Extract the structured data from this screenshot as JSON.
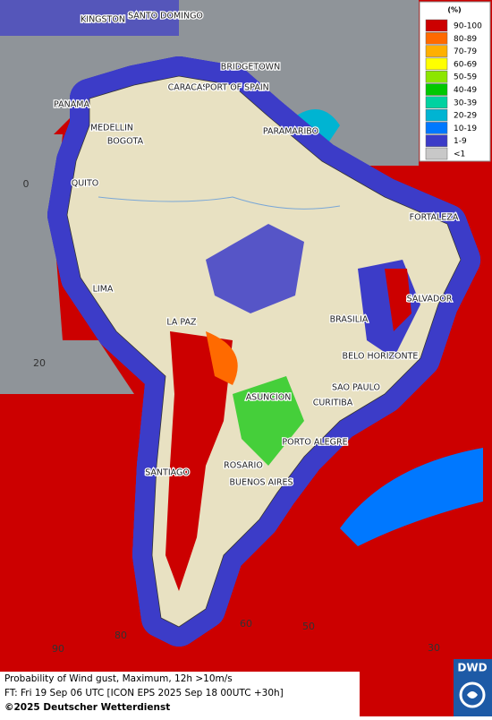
{
  "legend": {
    "title": "(%)",
    "items": [
      {
        "label": "90-100",
        "color": "#cc0000"
      },
      {
        "label": "80-89",
        "color": "#ff6a00"
      },
      {
        "label": "70-79",
        "color": "#ffb000"
      },
      {
        "label": "60-69",
        "color": "#ffff00"
      },
      {
        "label": "50-59",
        "color": "#8ce600"
      },
      {
        "label": "40-49",
        "color": "#00c800"
      },
      {
        "label": "30-39",
        "color": "#00d2a0"
      },
      {
        "label": "20-29",
        "color": "#00b4d2"
      },
      {
        "label": "10-19",
        "color": "#0078ff"
      },
      {
        "label": "1-9",
        "color": "#3c3cc8"
      },
      {
        "label": "<1",
        "color": "#c8c8c8"
      }
    ]
  },
  "cities": [
    "KINGSTON",
    "SANTO DOMINGO",
    "BRIDGETOWN",
    "CARACAS",
    "PORT OF SPAIN",
    "PANAMA",
    "MEDELLIN",
    "BOGOTA",
    "PARAMARIBO",
    "QUITO",
    "FORTALEZA",
    "LIMA",
    "SALVADOR",
    "LA PAZ",
    "BRASILIA",
    "BELO HORIZONTE",
    "SAO PAULO",
    "ASUNCION",
    "CURITIBA",
    "PORTO ALEGRE",
    "ROSARIO",
    "SANTIAGO",
    "BUENOS AIRES"
  ],
  "grid_labels": [
    "0",
    "20",
    "90",
    "80",
    "60",
    "50",
    "30"
  ],
  "footer": {
    "lines": [
      "Probability of Wind gust, Maximum, 12h >10m/s",
      "FT: Fri 19 Sep 06 UTC [ICON EPS 2025 Sep 18 00UTC +30h]"
    ],
    "copyright": "©2025 Deutscher Wetterdienst"
  },
  "logo": "DWD"
}
